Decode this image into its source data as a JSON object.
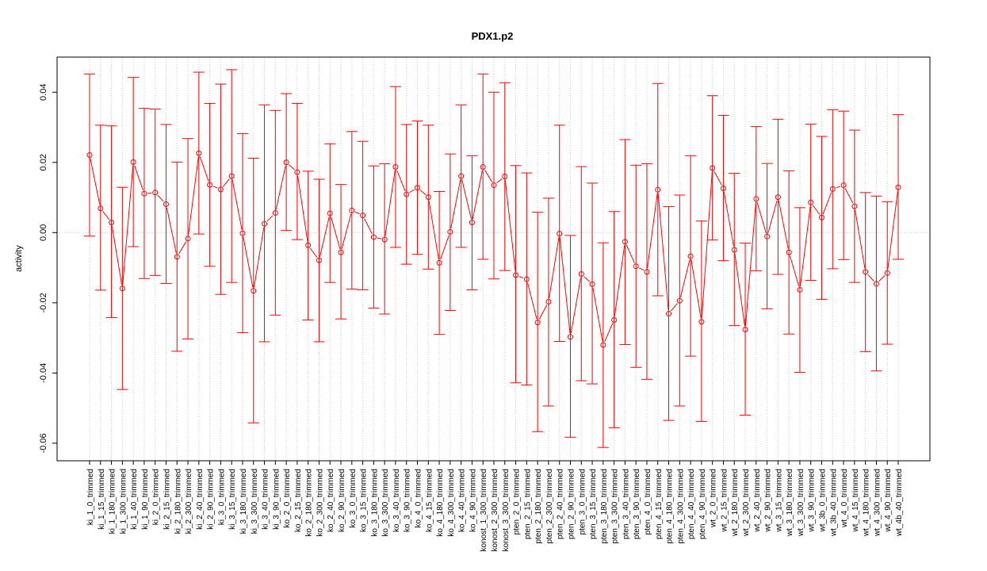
{
  "chart_data": {
    "type": "line",
    "title": "PDX1.p2",
    "xlabel": "",
    "ylabel": "activity",
    "ylim": [
      -0.065,
      0.05
    ],
    "yticks": [
      -0.06,
      -0.04,
      -0.02,
      0.0,
      0.02,
      0.04
    ],
    "ytick_labels": [
      "-0.06",
      "-0.04",
      "-0.02",
      "0.00",
      "0.02",
      "0.04"
    ],
    "grid": true,
    "reference_line": 0.0,
    "series_color": "#ff0000",
    "grid_color": "#cccccc",
    "categories": [
      "ki_1_0_trimmed",
      "ki_1_15_trimmed",
      "ki_1_180_trimmed",
      "ki_1_300_trimmed",
      "ki_1_40_trimmed",
      "ki_1_90_trimmed",
      "ki_2_0_trimmed",
      "ki_2_15_trimmed",
      "ki_2_180_trimmed",
      "ki_2_300_trimmed",
      "ki_2_40_trimmed",
      "ki_2_90_trimmed",
      "ki_3_0_trimmed",
      "ki_3_15_trimmed",
      "ki_3_180_trimmed",
      "ki_3_300_trimmed",
      "ki_3_40_trimmed",
      "ki_3_90_trimmed",
      "ko_2_0_trimmed",
      "ko_2_15_trimmed",
      "ko_2_180_trimmed",
      "ko_2_300_trimmed",
      "ko_2_40_trimmed",
      "ko_2_90_trimmed",
      "ko_3_0_trimmed",
      "ko_3_15_trimmed",
      "ko_3_180_trimmed",
      "ko_3_300_trimmed",
      "ko_3_40_trimmed",
      "ko_3_90_trimmed",
      "ko_4_0_trimmed",
      "ko_4_15_trimmed",
      "ko_4_180_trimmed",
      "ko_4_300_trimmed",
      "ko_4_40_trimmed",
      "ko_4_90_trimmed",
      "konost_1_300_trimmed",
      "konost_2_300_trimmed",
      "konost_3_300_trimmed",
      "pten_2_0_trimmed",
      "pten_2_15_trimmed",
      "pten_2_180_trimmed",
      "pten_2_300_trimmed",
      "pten_2_40_trimmed",
      "pten_2_90_trimmed",
      "pten_3_0_trimmed",
      "pten_3_15_trimmed",
      "pten_3_180_trimmed",
      "pten_3_300_trimmed",
      "pten_3_40_trimmed",
      "pten_3_90_trimmed",
      "pten_4_0_trimmed",
      "pten_4_15_trimmed",
      "pten_4_180_trimmed",
      "pten_4_300_trimmed",
      "pten_4_40_trimmed",
      "pten_4_90_trimmed",
      "wt_2_0_trimmed",
      "wt_2_15_trimmed",
      "wt_2_180_trimmed",
      "wt_2_300_trimmed",
      "wt_2_40_trimmed",
      "wt_2_90_trimmed",
      "wt_3_15_trimmed",
      "wt_3_180_trimmed",
      "wt_3_300_trimmed",
      "wt_3_90_trimmed",
      "wt_3b_0_trimmed",
      "wt_3b_40_trimmed",
      "wt_4_0_trimmed",
      "wt_4_15_trimmed",
      "wt_4_180_trimmed",
      "wt_4_300_trimmed",
      "wt_4_90_trimmed",
      "wt_4b_40_trimmed"
    ],
    "values": [
      0.0221,
      0.0069,
      0.0029,
      -0.0159,
      0.0201,
      0.0111,
      0.0114,
      0.0081,
      -0.0069,
      -0.0017,
      0.0226,
      0.0136,
      0.0123,
      0.0161,
      -0.0002,
      -0.0166,
      0.0025,
      0.0056,
      0.02,
      0.0172,
      -0.0036,
      -0.0079,
      0.0055,
      -0.0056,
      0.0063,
      0.0049,
      -0.0013,
      -0.002,
      0.0187,
      0.0109,
      0.0128,
      0.0101,
      -0.0086,
      0.0002,
      0.0161,
      0.0029,
      0.0187,
      0.0135,
      0.016,
      -0.0121,
      -0.0133,
      -0.0256,
      -0.0197,
      -0.0003,
      -0.0297,
      -0.0118,
      -0.0147,
      -0.032,
      -0.0249,
      -0.0026,
      -0.0096,
      -0.0112,
      0.0122,
      -0.0231,
      -0.0194,
      -0.0067,
      -0.0254,
      0.0184,
      0.0126,
      -0.0049,
      -0.0276,
      0.0096,
      -0.0011,
      0.0101,
      -0.0056,
      -0.0163,
      0.0086,
      0.0043,
      0.0124,
      0.0135,
      0.0075,
      -0.0112,
      -0.0146,
      -0.0115,
      0.0129
    ],
    "upper": [
      0.0452,
      0.0306,
      0.0304,
      0.0129,
      0.0442,
      0.0354,
      0.0352,
      0.0308,
      0.0201,
      0.0268,
      0.0457,
      0.0368,
      0.0423,
      0.0464,
      0.0282,
      0.0212,
      0.0364,
      0.0348,
      0.0396,
      0.0368,
      0.0175,
      0.0152,
      0.0253,
      0.0137,
      0.0288,
      0.026,
      0.019,
      0.0196,
      0.0416,
      0.0308,
      0.0318,
      0.0306,
      0.0117,
      0.0224,
      0.0364,
      0.0219,
      0.0452,
      0.04,
      0.0427,
      0.0191,
      0.017,
      0.0058,
      0.0098,
      0.0306,
      -0.0008,
      0.0188,
      0.0141,
      -0.0029,
      0.006,
      0.0265,
      0.0192,
      0.0196,
      0.0425,
      0.0074,
      0.0107,
      0.0219,
      0.0033,
      0.039,
      0.0334,
      0.0169,
      -0.003,
      0.0302,
      0.0197,
      0.0323,
      0.0176,
      0.0071,
      0.0309,
      0.0274,
      0.035,
      0.0346,
      0.0292,
      0.0114,
      0.0104,
      0.0088,
      0.0336
    ],
    "lower": [
      -0.001,
      -0.0164,
      -0.0242,
      -0.0447,
      -0.004,
      -0.0131,
      -0.0122,
      -0.0145,
      -0.0338,
      -0.0303,
      -0.0004,
      -0.0096,
      -0.0176,
      -0.0142,
      -0.0285,
      -0.0542,
      -0.0311,
      -0.0235,
      0.0006,
      -0.002,
      -0.0249,
      -0.0311,
      -0.0142,
      -0.0246,
      -0.0161,
      -0.0163,
      -0.0215,
      -0.0232,
      -0.0042,
      -0.009,
      -0.0062,
      -0.0104,
      -0.029,
      -0.0222,
      -0.0042,
      -0.0163,
      -0.0076,
      -0.0132,
      -0.0108,
      -0.0428,
      -0.0434,
      -0.0567,
      -0.0494,
      -0.031,
      -0.0583,
      -0.0422,
      -0.0431,
      -0.0612,
      -0.0556,
      -0.0319,
      -0.0384,
      -0.0418,
      -0.018,
      -0.0535,
      -0.0494,
      -0.0352,
      -0.0538,
      -0.0021,
      -0.008,
      -0.0265,
      -0.052,
      -0.0109,
      -0.0217,
      -0.0119,
      -0.0289,
      -0.0398,
      -0.0136,
      -0.019,
      -0.0103,
      -0.0077,
      -0.0142,
      -0.0339,
      -0.0394,
      -0.0318,
      -0.0076
    ]
  }
}
